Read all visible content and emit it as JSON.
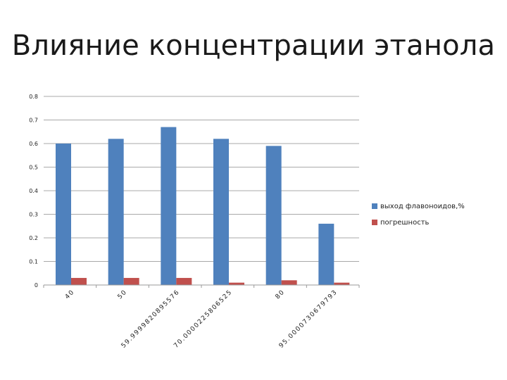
{
  "slide": {
    "title": "Влияние концентрации этанола"
  },
  "chart_data": {
    "type": "bar",
    "title": "Влияние концентрации этанола",
    "categories": [
      "40",
      "50",
      "59.9999820895576",
      "70.0000225806525",
      "80",
      "95.0000730679793"
    ],
    "series": [
      {
        "name": "выход флавоноидов,%",
        "values": [
          0.6,
          0.62,
          0.67,
          0.62,
          0.59,
          0.26
        ],
        "color": "#4f81bd"
      },
      {
        "name": "погрешность",
        "values": [
          0.03,
          0.03,
          0.03,
          0.01,
          0.02,
          0.01
        ],
        "color": "#c0504d"
      }
    ],
    "ylim": [
      0,
      0.8
    ],
    "yticks": [
      "0",
      "0.1",
      "0.2",
      "0.3",
      "0.4",
      "0.5",
      "0.6",
      "0.7",
      "0.8"
    ],
    "grid": true,
    "legend": "right"
  }
}
